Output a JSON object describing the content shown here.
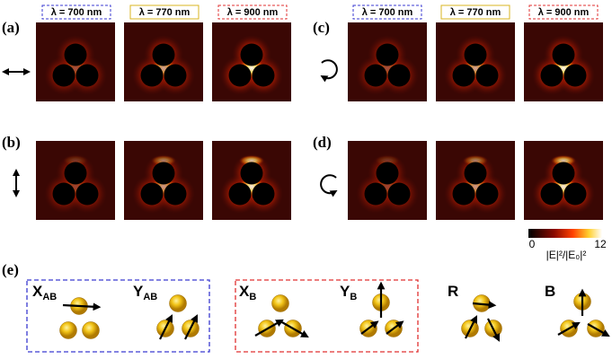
{
  "panels": {
    "a": "(a)",
    "b": "(b)",
    "c": "(c)",
    "d": "(d)",
    "e": "(e)"
  },
  "wavelengths_left": [
    "λ = 700 nm",
    "λ = 770 nm",
    "λ = 900 nm"
  ],
  "wavelengths_right": [
    "λ = 700 nm",
    "λ = 770 nm",
    "λ = 900 nm"
  ],
  "colorbar": {
    "min": 0,
    "max": 12,
    "label": "|E|²/|E₀|²"
  },
  "modes": [
    {
      "main": "X",
      "sub": "AB"
    },
    {
      "main": "Y",
      "sub": "AB"
    },
    {
      "main": "X",
      "sub": "B"
    },
    {
      "main": "Y",
      "sub": "B"
    },
    {
      "main": "R"
    },
    {
      "main": "B"
    }
  ]
}
